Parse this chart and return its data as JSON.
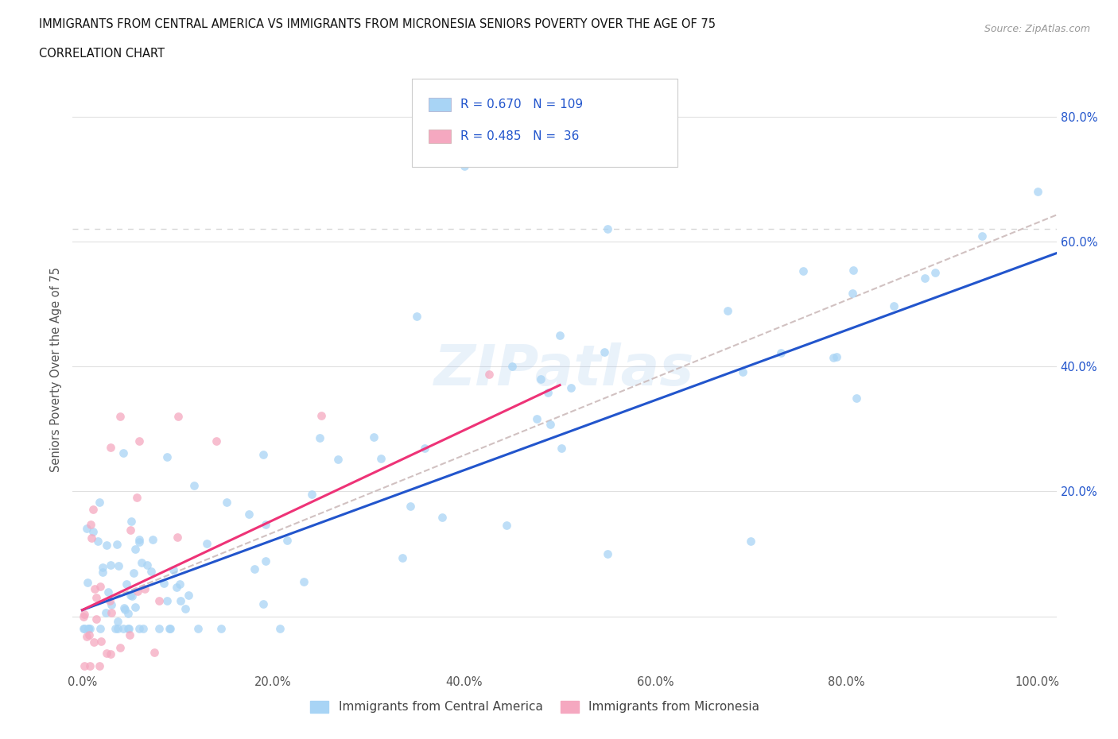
{
  "title": "IMMIGRANTS FROM CENTRAL AMERICA VS IMMIGRANTS FROM MICRONESIA SENIORS POVERTY OVER THE AGE OF 75",
  "subtitle": "CORRELATION CHART",
  "source": "Source: ZipAtlas.com",
  "ylabel": "Seniors Poverty Over the Age of 75",
  "r_central": 0.67,
  "n_central": 109,
  "r_micronesia": 0.485,
  "n_micronesia": 36,
  "color_central": "#A8D4F5",
  "color_micronesia": "#F5A8C0",
  "line_color_central": "#2255CC",
  "line_color_micronesia": "#EE3377",
  "dashed_line_color": "#CCBBBB",
  "background_color": "#FFFFFF",
  "title_color": "#111111",
  "stats_color": "#2255CC",
  "legend_label_central": "Immigrants from Central America",
  "legend_label_micronesia": "Immigrants from Micronesia",
  "watermark": "ZIPatlas",
  "dashed_line_y": 0.62,
  "right_ytick_values": [
    0.2,
    0.4,
    0.6,
    0.8
  ],
  "right_ytick_labels": [
    "20.0%",
    "40.0%",
    "60.0%",
    "80.0%"
  ],
  "xtick_values": [
    0.0,
    0.2,
    0.4,
    0.6,
    0.8,
    1.0
  ],
  "xtick_labels": [
    "0.0%",
    "20.0%",
    "40.0%",
    "60.0%",
    "80.0%",
    "100.0%"
  ]
}
